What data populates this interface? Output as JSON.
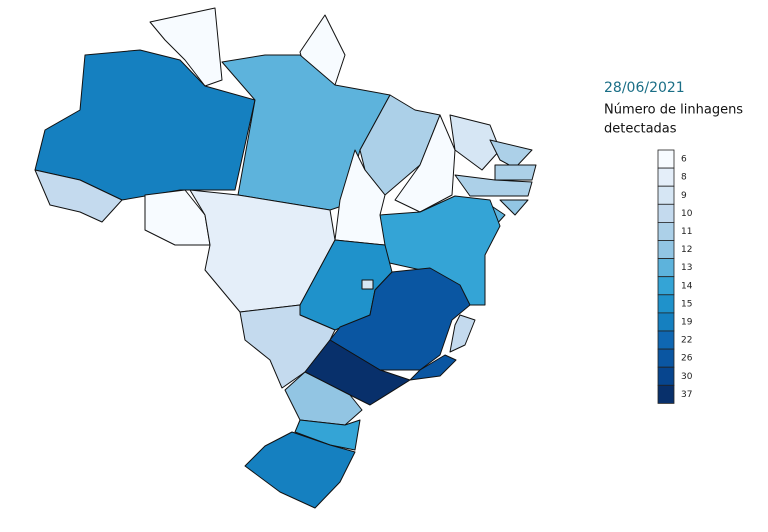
{
  "date": "28/06/2021",
  "legend_title": [
    "Número de linhagens",
    "detectadas"
  ],
  "legend": [
    {
      "value": 6,
      "color": "#f7fbff"
    },
    {
      "value": 8,
      "color": "#e4eef9"
    },
    {
      "value": 9,
      "color": "#d6e6f4"
    },
    {
      "value": 10,
      "color": "#c4daee"
    },
    {
      "value": 11,
      "color": "#acd0e8"
    },
    {
      "value": 12,
      "color": "#92c5e3"
    },
    {
      "value": 13,
      "color": "#5db3dc"
    },
    {
      "value": 14,
      "color": "#34a4d6"
    },
    {
      "value": 15,
      "color": "#1f92cb"
    },
    {
      "value": 19,
      "color": "#1580c0"
    },
    {
      "value": 22,
      "color": "#0f67b2"
    },
    {
      "value": 26,
      "color": "#0a56a2"
    },
    {
      "value": 30,
      "color": "#07458e"
    },
    {
      "value": 37,
      "color": "#08306b"
    }
  ],
  "region_values": [
    6,
    6,
    19,
    10,
    13,
    11,
    6,
    9,
    11,
    11,
    11,
    12,
    13,
    14,
    6,
    6,
    8,
    15,
    9,
    26,
    10,
    26,
    10,
    37,
    12,
    14,
    19
  ]
}
